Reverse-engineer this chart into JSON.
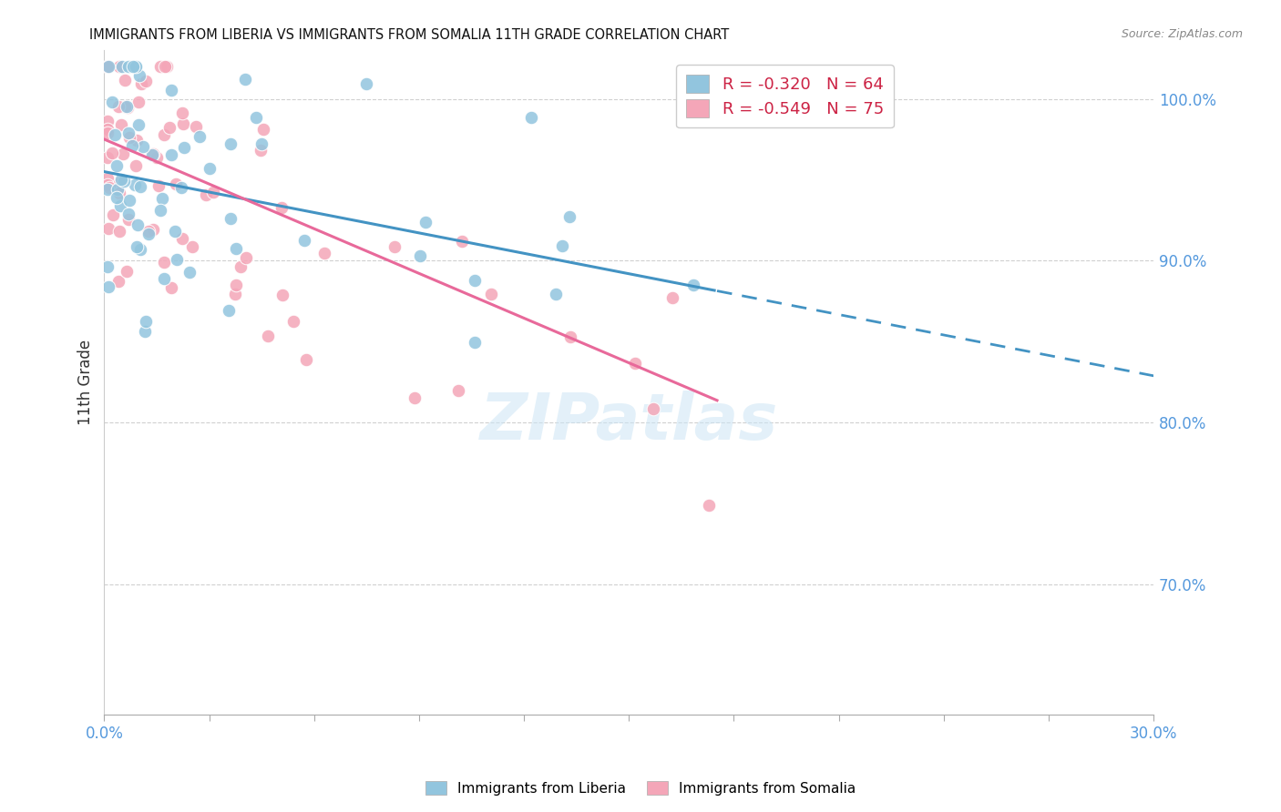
{
  "title": "IMMIGRANTS FROM LIBERIA VS IMMIGRANTS FROM SOMALIA 11TH GRADE CORRELATION CHART",
  "source": "Source: ZipAtlas.com",
  "ylabel": "11th Grade",
  "right_yticks": [
    70.0,
    80.0,
    90.0,
    100.0
  ],
  "right_ytick_labels": [
    "70.0%",
    "80.0%",
    "90.0%",
    "100.0%"
  ],
  "xmin": 0.0,
  "xmax": 30.0,
  "ymin": 62.0,
  "ymax": 103.0,
  "legend_liberia_r": "R = -0.320",
  "legend_liberia_n": "N = 64",
  "legend_somalia_r": "R = -0.549",
  "legend_somalia_n": "N = 75",
  "legend_label_liberia": "Immigrants from Liberia",
  "legend_label_somalia": "Immigrants from Somalia",
  "watermark": "ZIPatlas",
  "blue_color": "#92c5de",
  "pink_color": "#f4a6b8",
  "blue_line_color": "#4393c3",
  "pink_line_color": "#e8699a",
  "blue_r": -0.32,
  "blue_n": 64,
  "pink_r": -0.549,
  "pink_n": 75,
  "blue_intercept": 95.5,
  "blue_slope": -0.42,
  "pink_intercept": 97.5,
  "pink_slope": -0.92,
  "blue_scatter_seed": 7,
  "pink_scatter_seed": 13,
  "blue_solid_end_x": 17.5,
  "blue_dashed_end_x": 29.5
}
